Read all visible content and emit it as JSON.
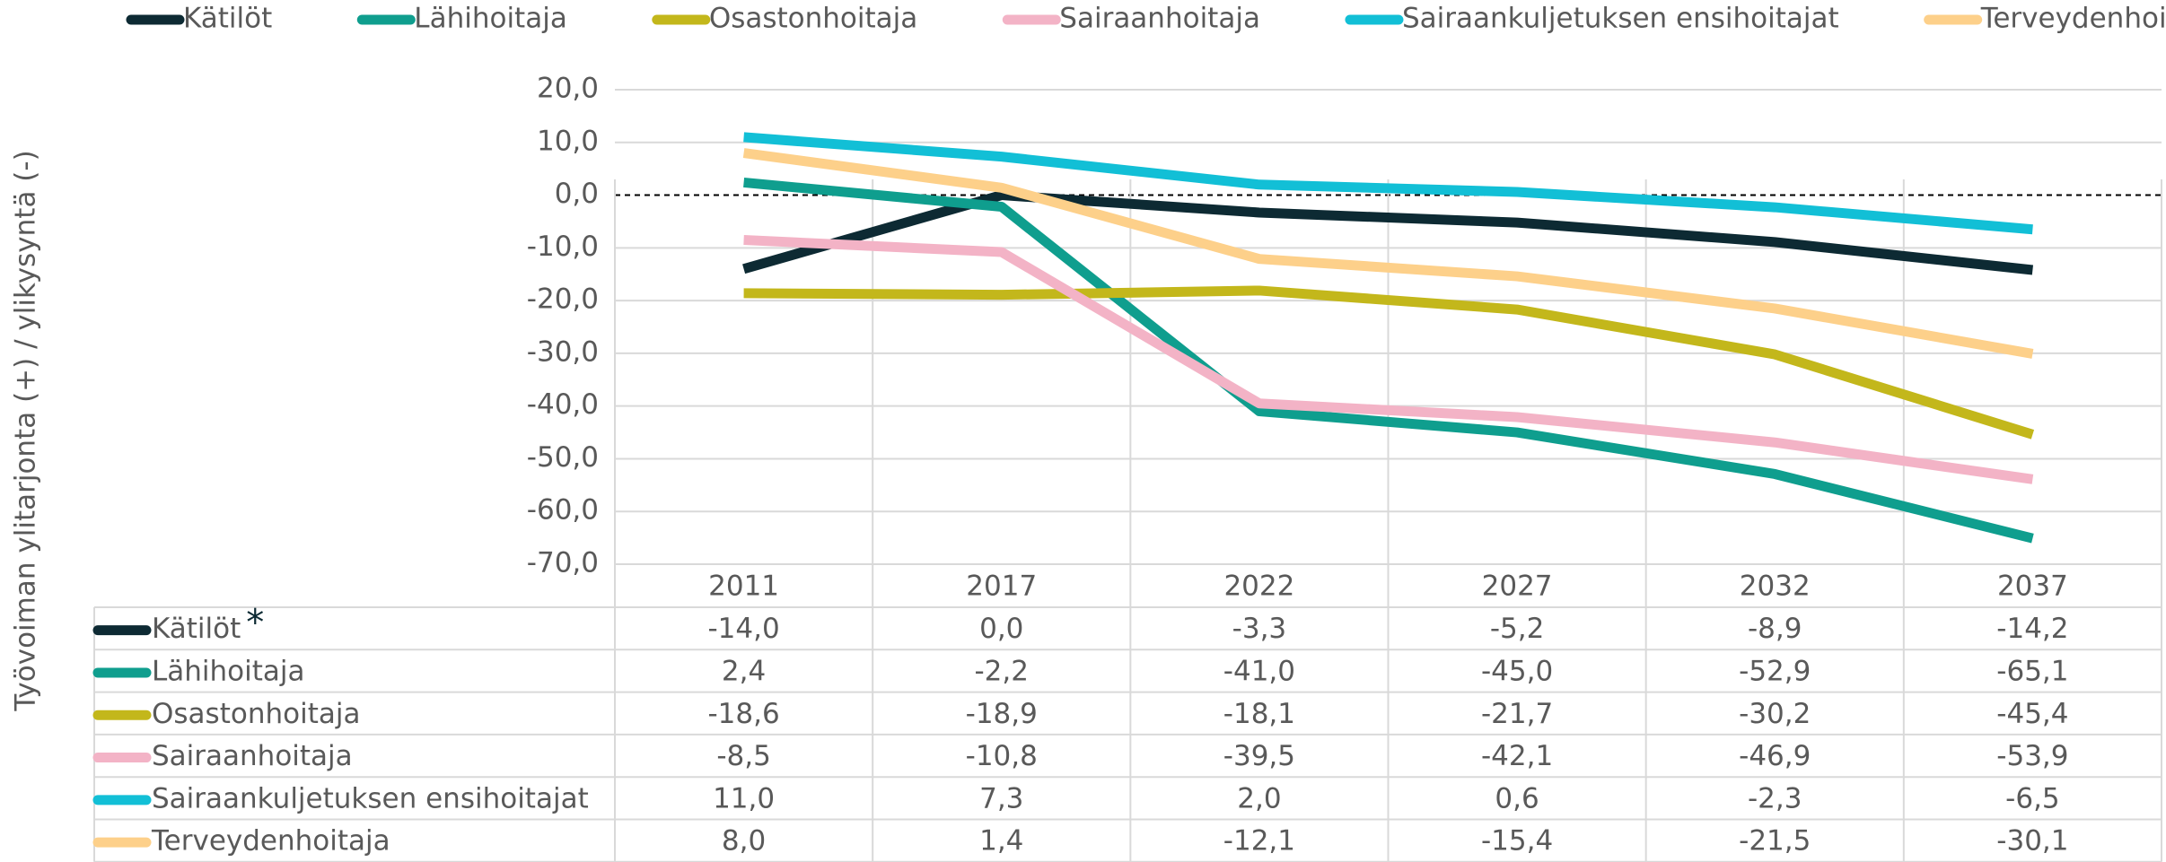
{
  "chart_data": {
    "type": "line",
    "y_axis_label": "Työvoiman ylitarjonta (+) / ylikysyntä (-)",
    "categories": [
      "2011",
      "2017",
      "2022",
      "2027",
      "2032",
      "2037"
    ],
    "ylim": [
      -70,
      20
    ],
    "yticks": [
      {
        "value": 20,
        "label": "20,0"
      },
      {
        "value": 10,
        "label": "10,0"
      },
      {
        "value": 0,
        "label": "0,0"
      },
      {
        "value": -10,
        "label": "-10,0"
      },
      {
        "value": -20,
        "label": "-20,0"
      },
      {
        "value": -30,
        "label": "-30,0"
      },
      {
        "value": -40,
        "label": "-40,0"
      },
      {
        "value": -50,
        "label": "-50,0"
      },
      {
        "value": -60,
        "label": "-60,0"
      },
      {
        "value": -70,
        "label": "-70,0"
      }
    ],
    "annotation": "*",
    "series": [
      {
        "name": "Kätilöt",
        "color": "#0d2a33",
        "values": [
          -14.0,
          0.0,
          -3.3,
          -5.2,
          -8.9,
          -14.2
        ],
        "value_labels": [
          "-14,0",
          "0,0",
          "-3,3",
          "-5,2",
          "-8,9",
          "-14,2"
        ]
      },
      {
        "name": "Lähihoitaja",
        "color": "#0f9e8e",
        "values": [
          2.4,
          -2.2,
          -41.0,
          -45.0,
          -52.9,
          -65.1
        ],
        "value_labels": [
          "2,4",
          "-2,2",
          "-41,0",
          "-45,0",
          "-52,9",
          "-65,1"
        ]
      },
      {
        "name": "Osastonhoitaja",
        "color": "#c3b71b",
        "values": [
          -18.6,
          -18.9,
          -18.1,
          -21.7,
          -30.2,
          -45.4
        ],
        "value_labels": [
          "-18,6",
          "-18,9",
          "-18,1",
          "-21,7",
          "-30,2",
          "-45,4"
        ]
      },
      {
        "name": "Sairaanhoitaja",
        "color": "#f3b3c6",
        "values": [
          -8.5,
          -10.8,
          -39.5,
          -42.1,
          -46.9,
          -53.9
        ],
        "value_labels": [
          "-8,5",
          "-10,8",
          "-39,5",
          "-42,1",
          "-46,9",
          "-53,9"
        ]
      },
      {
        "name": "Sairaankuljetuksen ensihoitajat",
        "color": "#12bfd6",
        "values": [
          11.0,
          7.3,
          2.0,
          0.6,
          -2.3,
          -6.5
        ],
        "value_labels": [
          "11,0",
          "7,3",
          "2,0",
          "0,6",
          "-2,3",
          "-6,5"
        ]
      },
      {
        "name": "Terveydenhoitaja",
        "color": "#fdd08a",
        "values": [
          8.0,
          1.4,
          -12.1,
          -15.4,
          -21.5,
          -30.1
        ],
        "value_labels": [
          "8,0",
          "1,4",
          "-12,1",
          "-15,4",
          "-21,5",
          "-30,1"
        ]
      }
    ]
  }
}
